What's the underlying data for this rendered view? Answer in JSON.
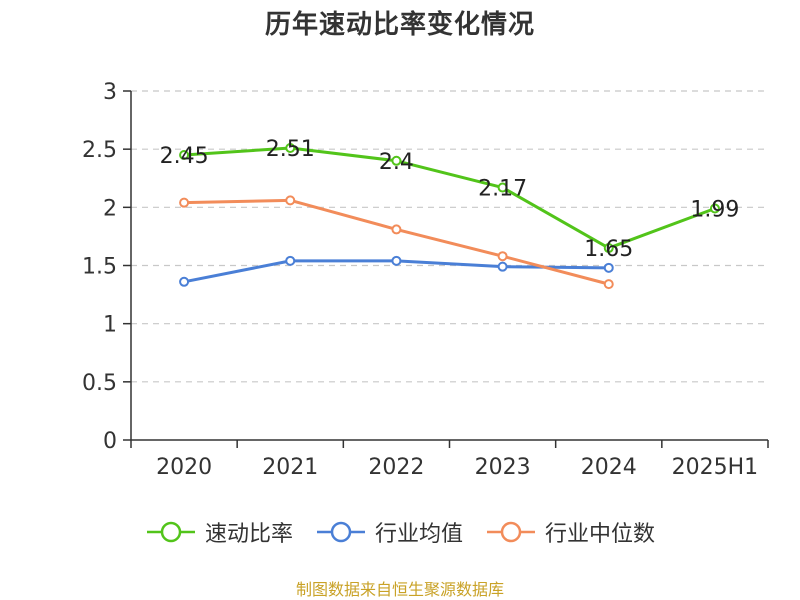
{
  "chart_data": {
    "type": "line",
    "title": "历年速动比率变化情况",
    "categories": [
      "2020",
      "2021",
      "2022",
      "2023",
      "2024",
      "2025H1"
    ],
    "ylim": [
      0,
      3
    ],
    "yticks": [
      "0",
      "0.5",
      "1",
      "1.5",
      "2",
      "2.5",
      "3"
    ],
    "grid": true,
    "legend_position": "bottom",
    "series": [
      {
        "name": "速动比率",
        "color": "#52c41a",
        "values": [
          2.45,
          2.51,
          2.4,
          2.17,
          1.65,
          1.99
        ],
        "labels": [
          "2.45",
          "2.51",
          "2.4",
          "2.17",
          "1.65",
          "1.99"
        ]
      },
      {
        "name": "行业均值",
        "color": "#4a7fd6",
        "values": [
          1.36,
          1.54,
          1.54,
          1.49,
          1.48,
          null
        ]
      },
      {
        "name": "行业中位数",
        "color": "#f28c5a",
        "values": [
          2.04,
          2.06,
          1.81,
          1.58,
          1.34,
          null
        ]
      }
    ]
  },
  "footer": "制图数据来自恒生聚源数据库"
}
